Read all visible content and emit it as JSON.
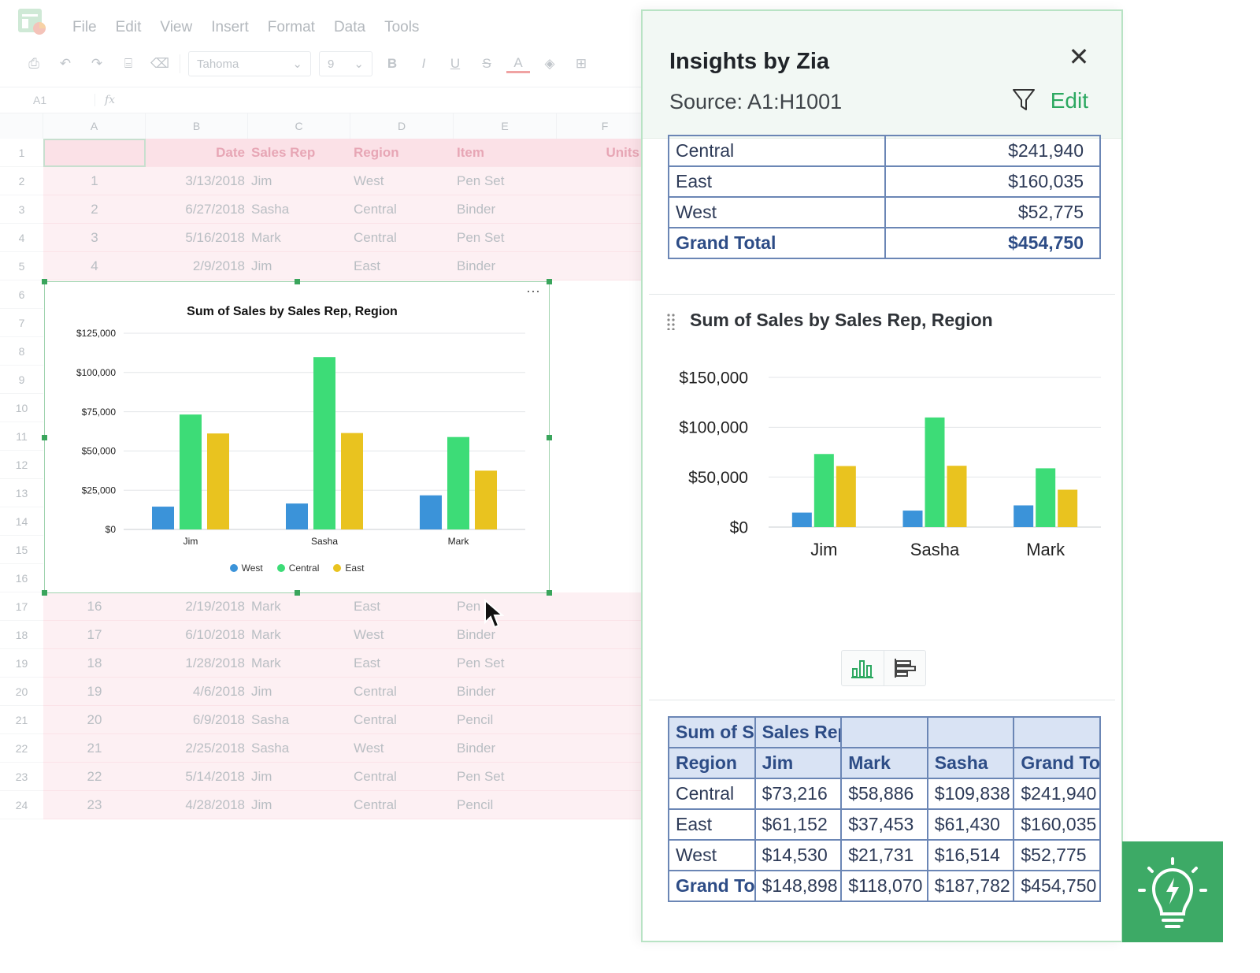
{
  "sheet": {
    "menu": [
      "File",
      "Edit",
      "View",
      "Insert",
      "Format",
      "Data",
      "Tools"
    ],
    "toolbar": {
      "font": "Tahoma",
      "size": "9"
    },
    "cell_ref": "A1",
    "fx": "fx",
    "columns": [
      "A",
      "B",
      "C",
      "D",
      "E",
      "F"
    ],
    "row_numbers": [
      "1",
      "2",
      "3",
      "4",
      "5",
      "6",
      "7",
      "8",
      "9",
      "10",
      "11",
      "12",
      "13",
      "14",
      "15",
      "16",
      "17",
      "18",
      "19",
      "20",
      "21",
      "22",
      "23",
      "24"
    ],
    "header": {
      "a": "",
      "date": "Date",
      "rep": "Sales Rep",
      "region": "Region",
      "item": "Item",
      "units": "Units"
    },
    "rows_top": [
      {
        "a": "1",
        "date": "3/13/2018",
        "rep": "Jim",
        "region": "West",
        "item": "Pen Set"
      },
      {
        "a": "2",
        "date": "6/27/2018",
        "rep": "Sasha",
        "region": "Central",
        "item": "Binder"
      },
      {
        "a": "3",
        "date": "5/16/2018",
        "rep": "Mark",
        "region": "Central",
        "item": "Pen Set"
      },
      {
        "a": "4",
        "date": "2/9/2018",
        "rep": "Jim",
        "region": "East",
        "item": "Binder"
      }
    ],
    "rows_bottom": [
      {
        "a": "16",
        "date": "2/19/2018",
        "rep": "Mark",
        "region": "East",
        "item": "Pen"
      },
      {
        "a": "17",
        "date": "6/10/2018",
        "rep": "Mark",
        "region": "West",
        "item": "Binder"
      },
      {
        "a": "18",
        "date": "1/28/2018",
        "rep": "Mark",
        "region": "East",
        "item": "Pen Set"
      },
      {
        "a": "19",
        "date": "4/6/2018",
        "rep": "Jim",
        "region": "Central",
        "item": "Binder"
      },
      {
        "a": "20",
        "date": "6/9/2018",
        "rep": "Sasha",
        "region": "Central",
        "item": "Pencil"
      },
      {
        "a": "21",
        "date": "2/25/2018",
        "rep": "Sasha",
        "region": "West",
        "item": "Binder"
      },
      {
        "a": "22",
        "date": "5/14/2018",
        "rep": "Jim",
        "region": "Central",
        "item": "Pen Set"
      },
      {
        "a": "23",
        "date": "4/28/2018",
        "rep": "Jim",
        "region": "Central",
        "item": "Pencil"
      }
    ]
  },
  "colors": {
    "west": "#3b93d9",
    "central": "#3ddc77",
    "east": "#e9c31f",
    "accent": "#2ca860",
    "panel_border": "#b8e3c4"
  },
  "zia": {
    "title": "Insights by Zia",
    "source": "Source: A1:H1001",
    "edit": "Edit",
    "summary": [
      {
        "label": "Central",
        "value": "$241,940"
      },
      {
        "label": "East",
        "value": "$160,035"
      },
      {
        "label": "West",
        "value": "$52,775"
      },
      {
        "label": "Grand Total",
        "value": "$454,750"
      }
    ],
    "section_title": "Sum of Sales by Sales Rep, Region",
    "pivot": {
      "h1": [
        "Sum of S",
        "Sales Rep",
        "",
        "",
        ""
      ],
      "h2": [
        "Region",
        "Jim",
        "Mark",
        "Sasha",
        "Grand To"
      ],
      "rows": [
        [
          "Central",
          "$73,216",
          "$58,886",
          "$109,838",
          "$241,940"
        ],
        [
          "East",
          "$61,152",
          "$37,453",
          "$61,430",
          "$160,035"
        ],
        [
          "West",
          "$14,530",
          "$21,731",
          "$16,514",
          "$52,775"
        ]
      ],
      "grand": [
        "Grand To",
        "$148,898",
        "$118,070",
        "$187,782",
        "$454,750"
      ]
    }
  },
  "chart_data": [
    {
      "type": "bar",
      "title": "Sum of Sales by Sales Rep, Region",
      "categories": [
        "Jim",
        "Sasha",
        "Mark"
      ],
      "series": [
        {
          "name": "West",
          "values": [
            14530,
            16514,
            21731
          ]
        },
        {
          "name": "Central",
          "values": [
            73216,
            109838,
            58886
          ]
        },
        {
          "name": "East",
          "values": [
            61152,
            61430,
            37453
          ]
        }
      ],
      "ylim": [
        0,
        125000
      ],
      "yticks": [
        "$0",
        "$25,000",
        "$50,000",
        "$75,000",
        "$100,000",
        "$125,000"
      ],
      "legend": "bottom",
      "grid": true
    },
    {
      "type": "bar",
      "title": "Sum of Sales by Sales Rep, Region",
      "categories": [
        "Jim",
        "Sasha",
        "Mark"
      ],
      "series": [
        {
          "values": [
            14530,
            16514,
            21731
          ]
        },
        {
          "values": [
            73216,
            109838,
            58886
          ]
        },
        {
          "values": [
            61152,
            61430,
            37453
          ]
        }
      ],
      "ylim": [
        0,
        150000
      ],
      "yticks": [
        "$0",
        "$50,000",
        "$100,000",
        "$150,000"
      ],
      "grid": true
    }
  ]
}
